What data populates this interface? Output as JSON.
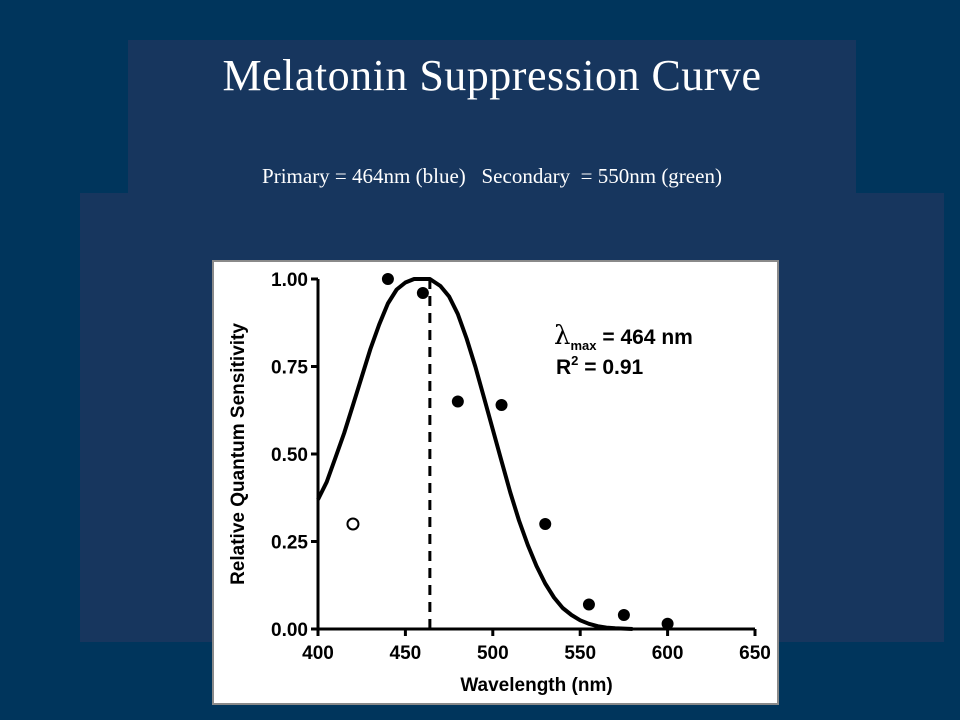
{
  "slide": {
    "title": "Melatonin Suppression Curve",
    "subtitle": "Primary = 464nm (blue)   Secondary  = 550nm (green)"
  },
  "chart_data": {
    "type": "scatter",
    "xlabel": "Wavelength (nm)",
    "ylabel": "Relative Quantum Sensitivity",
    "xlim": [
      400,
      650
    ],
    "ylim": [
      0,
      1
    ],
    "x_ticks": [
      400,
      450,
      500,
      550,
      600,
      650
    ],
    "y_ticks": [
      0,
      0.25,
      0.5,
      0.75,
      1.0
    ],
    "x_tick_labels": [
      "400",
      "450",
      "500",
      "550",
      "600",
      "650"
    ],
    "y_tick_labels": [
      "0.00",
      "0.25",
      "0.50",
      "0.75",
      "1.00"
    ],
    "grid": false,
    "series": [
      {
        "marker": "filled-circle",
        "x": [
          440,
          460,
          480,
          505,
          530,
          555,
          575,
          600
        ],
        "y": [
          1.0,
          0.96,
          0.65,
          0.64,
          0.3,
          0.07,
          0.04,
          0.015
        ]
      },
      {
        "marker": "open-circle",
        "x": [
          420
        ],
        "y": [
          0.3
        ]
      }
    ],
    "fit_curve": {
      "peak_x": 464,
      "x": [
        400,
        405,
        410,
        415,
        420,
        425,
        430,
        435,
        440,
        445,
        450,
        455,
        460,
        464,
        470,
        475,
        480,
        485,
        490,
        495,
        500,
        505,
        510,
        515,
        520,
        525,
        530,
        535,
        540,
        545,
        550,
        555,
        560,
        565,
        570,
        575,
        580
      ],
      "y": [
        0.37,
        0.42,
        0.49,
        0.56,
        0.64,
        0.72,
        0.8,
        0.87,
        0.93,
        0.97,
        0.99,
        1.0,
        1.0,
        1.0,
        0.98,
        0.95,
        0.9,
        0.83,
        0.75,
        0.66,
        0.57,
        0.48,
        0.39,
        0.31,
        0.24,
        0.18,
        0.13,
        0.09,
        0.06,
        0.04,
        0.025,
        0.015,
        0.008,
        0.004,
        0.002,
        0.001,
        0.0
      ]
    },
    "vline_x": 464,
    "annotations": {
      "lambda": "λ",
      "lambda_sub": "max",
      "lambda_value": " = 464 nm",
      "r2_base": "R",
      "r2_sup": "2",
      "r2_value": " = 0.91"
    }
  }
}
